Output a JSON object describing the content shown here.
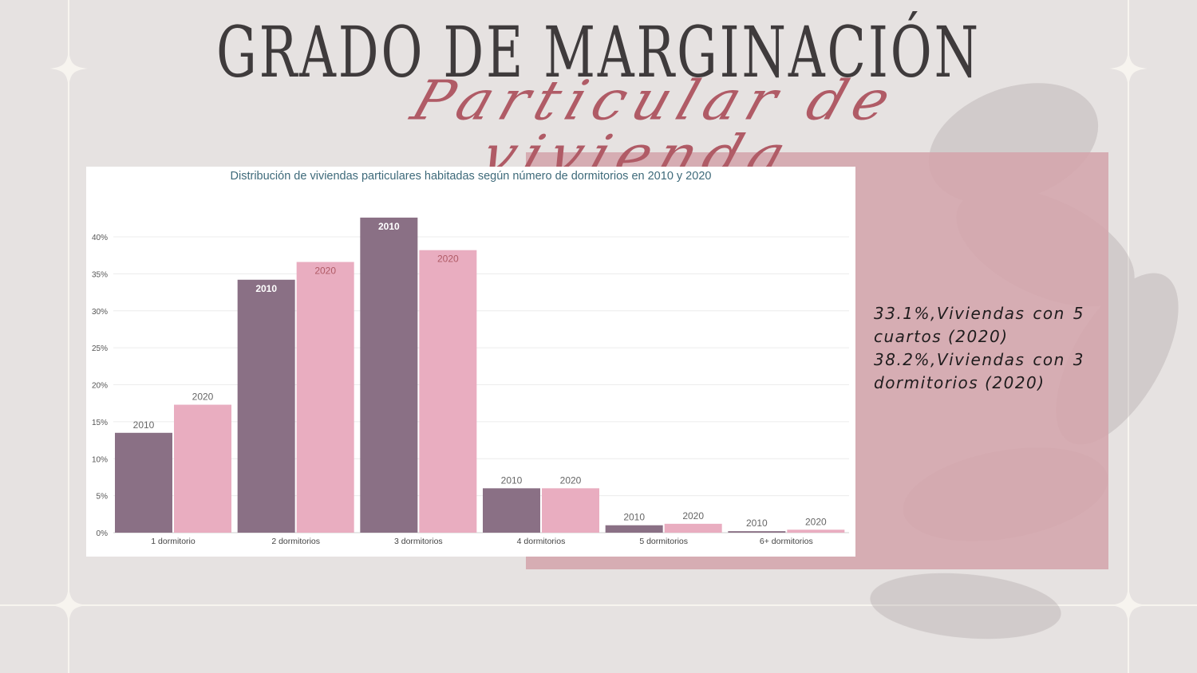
{
  "slide": {
    "title": "GRADO DE MARGINACIÓN",
    "subtitle": "Particular de vivienda",
    "facts": [
      "33.1%,Viviendas con 5 cuartos (2020)",
      "38.2%,Viviendas con 3 dormitorios (2020)"
    ]
  },
  "colors": {
    "background": "#e6e2e1",
    "panel": "#d4a5ac",
    "series_2010": "#8a7085",
    "series_2020": "#e9adc0",
    "title_dark": "#3f3b3c",
    "title_script": "#b05b66",
    "chart_title": "#3e6a7a"
  },
  "chart_data": {
    "type": "bar",
    "title": "Distribución de viviendas particulares habitadas según número de dormitorios en 2010 y 2020",
    "categories": [
      "1 dormitorio",
      "2 dormitorios",
      "3 dormitorios",
      "4 dormitorios",
      "5 dormitorios",
      "6+ dormitorios"
    ],
    "series": [
      {
        "name": "2010",
        "values": [
          13.5,
          34.2,
          42.6,
          6.0,
          1.0,
          0.2
        ]
      },
      {
        "name": "2020",
        "values": [
          17.3,
          36.6,
          38.2,
          6.0,
          1.2,
          0.4
        ]
      }
    ],
    "ylim": [
      0,
      45
    ],
    "yticks": [
      0,
      5,
      10,
      15,
      20,
      25,
      30,
      35,
      40
    ],
    "ytick_labels": [
      "0%",
      "5%",
      "10%",
      "15%",
      "20%",
      "25%",
      "30%",
      "35%",
      "40%"
    ],
    "grid": true,
    "legend": "none"
  }
}
